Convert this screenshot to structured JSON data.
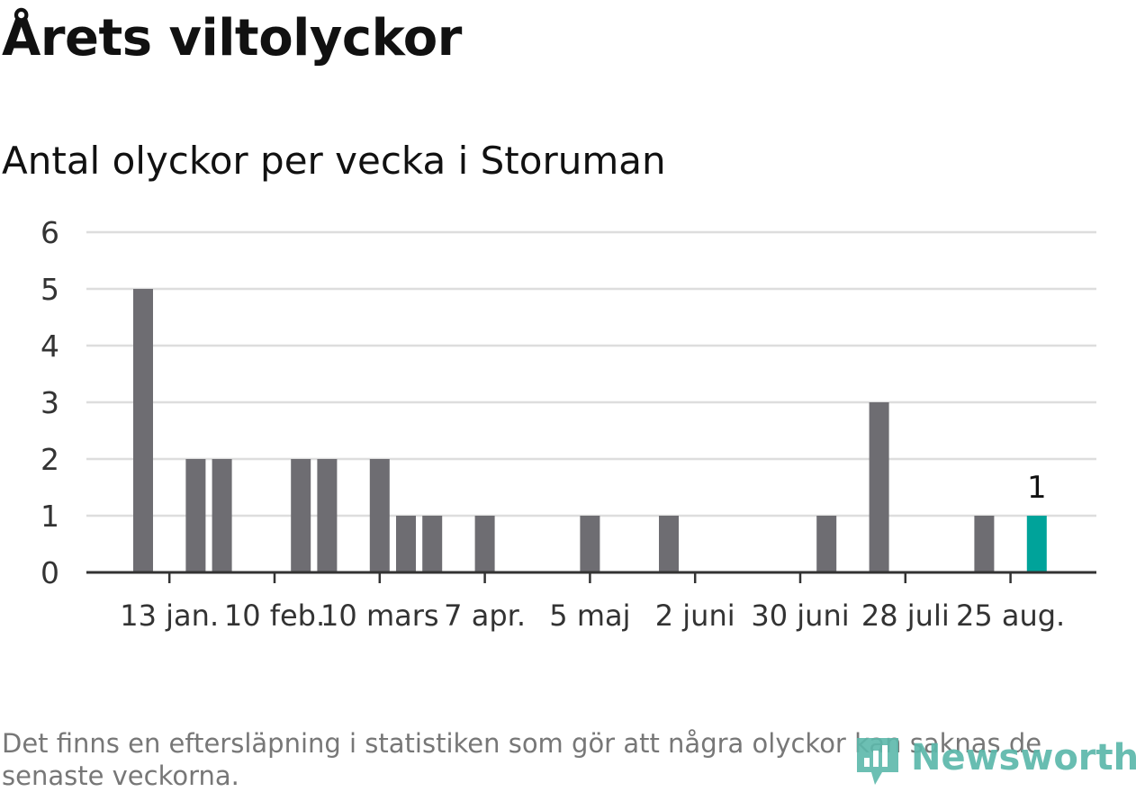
{
  "header": {
    "title": "Årets viltolyckor",
    "subtitle": "Antal olyckor per vecka i Storuman"
  },
  "footer": {
    "note": "Det finns en eftersläpning i statistiken som gör att några olyckor kan saknas de senaste veckorna.",
    "logo_text": "Newsworthy"
  },
  "colors": {
    "bar": "#6e6d72",
    "highlight": "#00a39a",
    "grid": "#dddddd",
    "axis": "#333333",
    "brand": "#5cb8ab"
  },
  "chart_data": {
    "type": "bar",
    "title": "Årets viltolyckor",
    "subtitle": "Antal olyckor per vecka i Storuman",
    "xlabel": "",
    "ylabel": "",
    "ylim": [
      0,
      6
    ],
    "yticks": [
      0,
      1,
      2,
      3,
      4,
      5,
      6
    ],
    "grid": true,
    "legend": "none",
    "x_ticks": [
      {
        "label": "13 jan.",
        "week": 3
      },
      {
        "label": "10 feb.",
        "week": 7
      },
      {
        "label": "10 mars",
        "week": 11
      },
      {
        "label": "7 apr.",
        "week": 15
      },
      {
        "label": "5 maj",
        "week": 19
      },
      {
        "label": "2 juni",
        "week": 23
      },
      {
        "label": "30 juni",
        "week": 27
      },
      {
        "label": "28 juli",
        "week": 31
      },
      {
        "label": "25 aug.",
        "week": 35
      }
    ],
    "weeks": [
      2,
      4,
      5,
      8,
      9,
      11,
      12,
      13,
      15,
      19,
      22,
      28,
      30,
      34,
      36
    ],
    "values": [
      5,
      2,
      2,
      2,
      2,
      2,
      1,
      1,
      1,
      1,
      1,
      1,
      3,
      1,
      1
    ],
    "highlight_week": 36,
    "data_labels": [
      {
        "week": 36,
        "value": 1,
        "text": "1"
      }
    ]
  }
}
